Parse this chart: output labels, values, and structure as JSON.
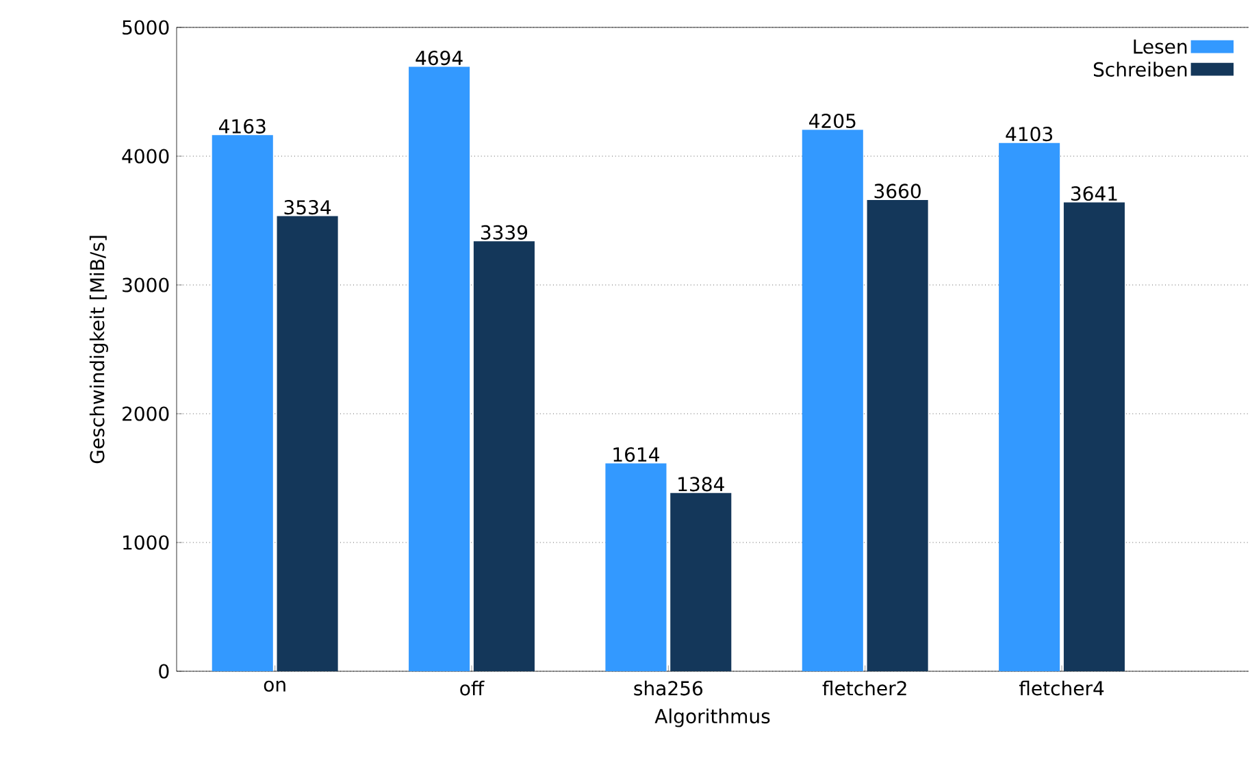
{
  "chart_data": {
    "type": "bar",
    "xlabel": "Algorithmus",
    "ylabel": "Geschwindigkeit [MiB/s]",
    "categories": [
      "on",
      "off",
      "sha256",
      "fletcher2",
      "fletcher4"
    ],
    "series": [
      {
        "name": "Lesen",
        "color": "#3399ff",
        "values": [
          4163,
          4694,
          1614,
          4205,
          4103
        ]
      },
      {
        "name": "Schreiben",
        "color": "#14375a",
        "values": [
          3534,
          3339,
          1384,
          3660,
          3641
        ]
      }
    ],
    "ylim": [
      0,
      5000
    ],
    "yticks": [
      0,
      1000,
      2000,
      3000,
      4000,
      5000
    ],
    "grid": "y",
    "legend": "top right",
    "data_labels": true
  }
}
